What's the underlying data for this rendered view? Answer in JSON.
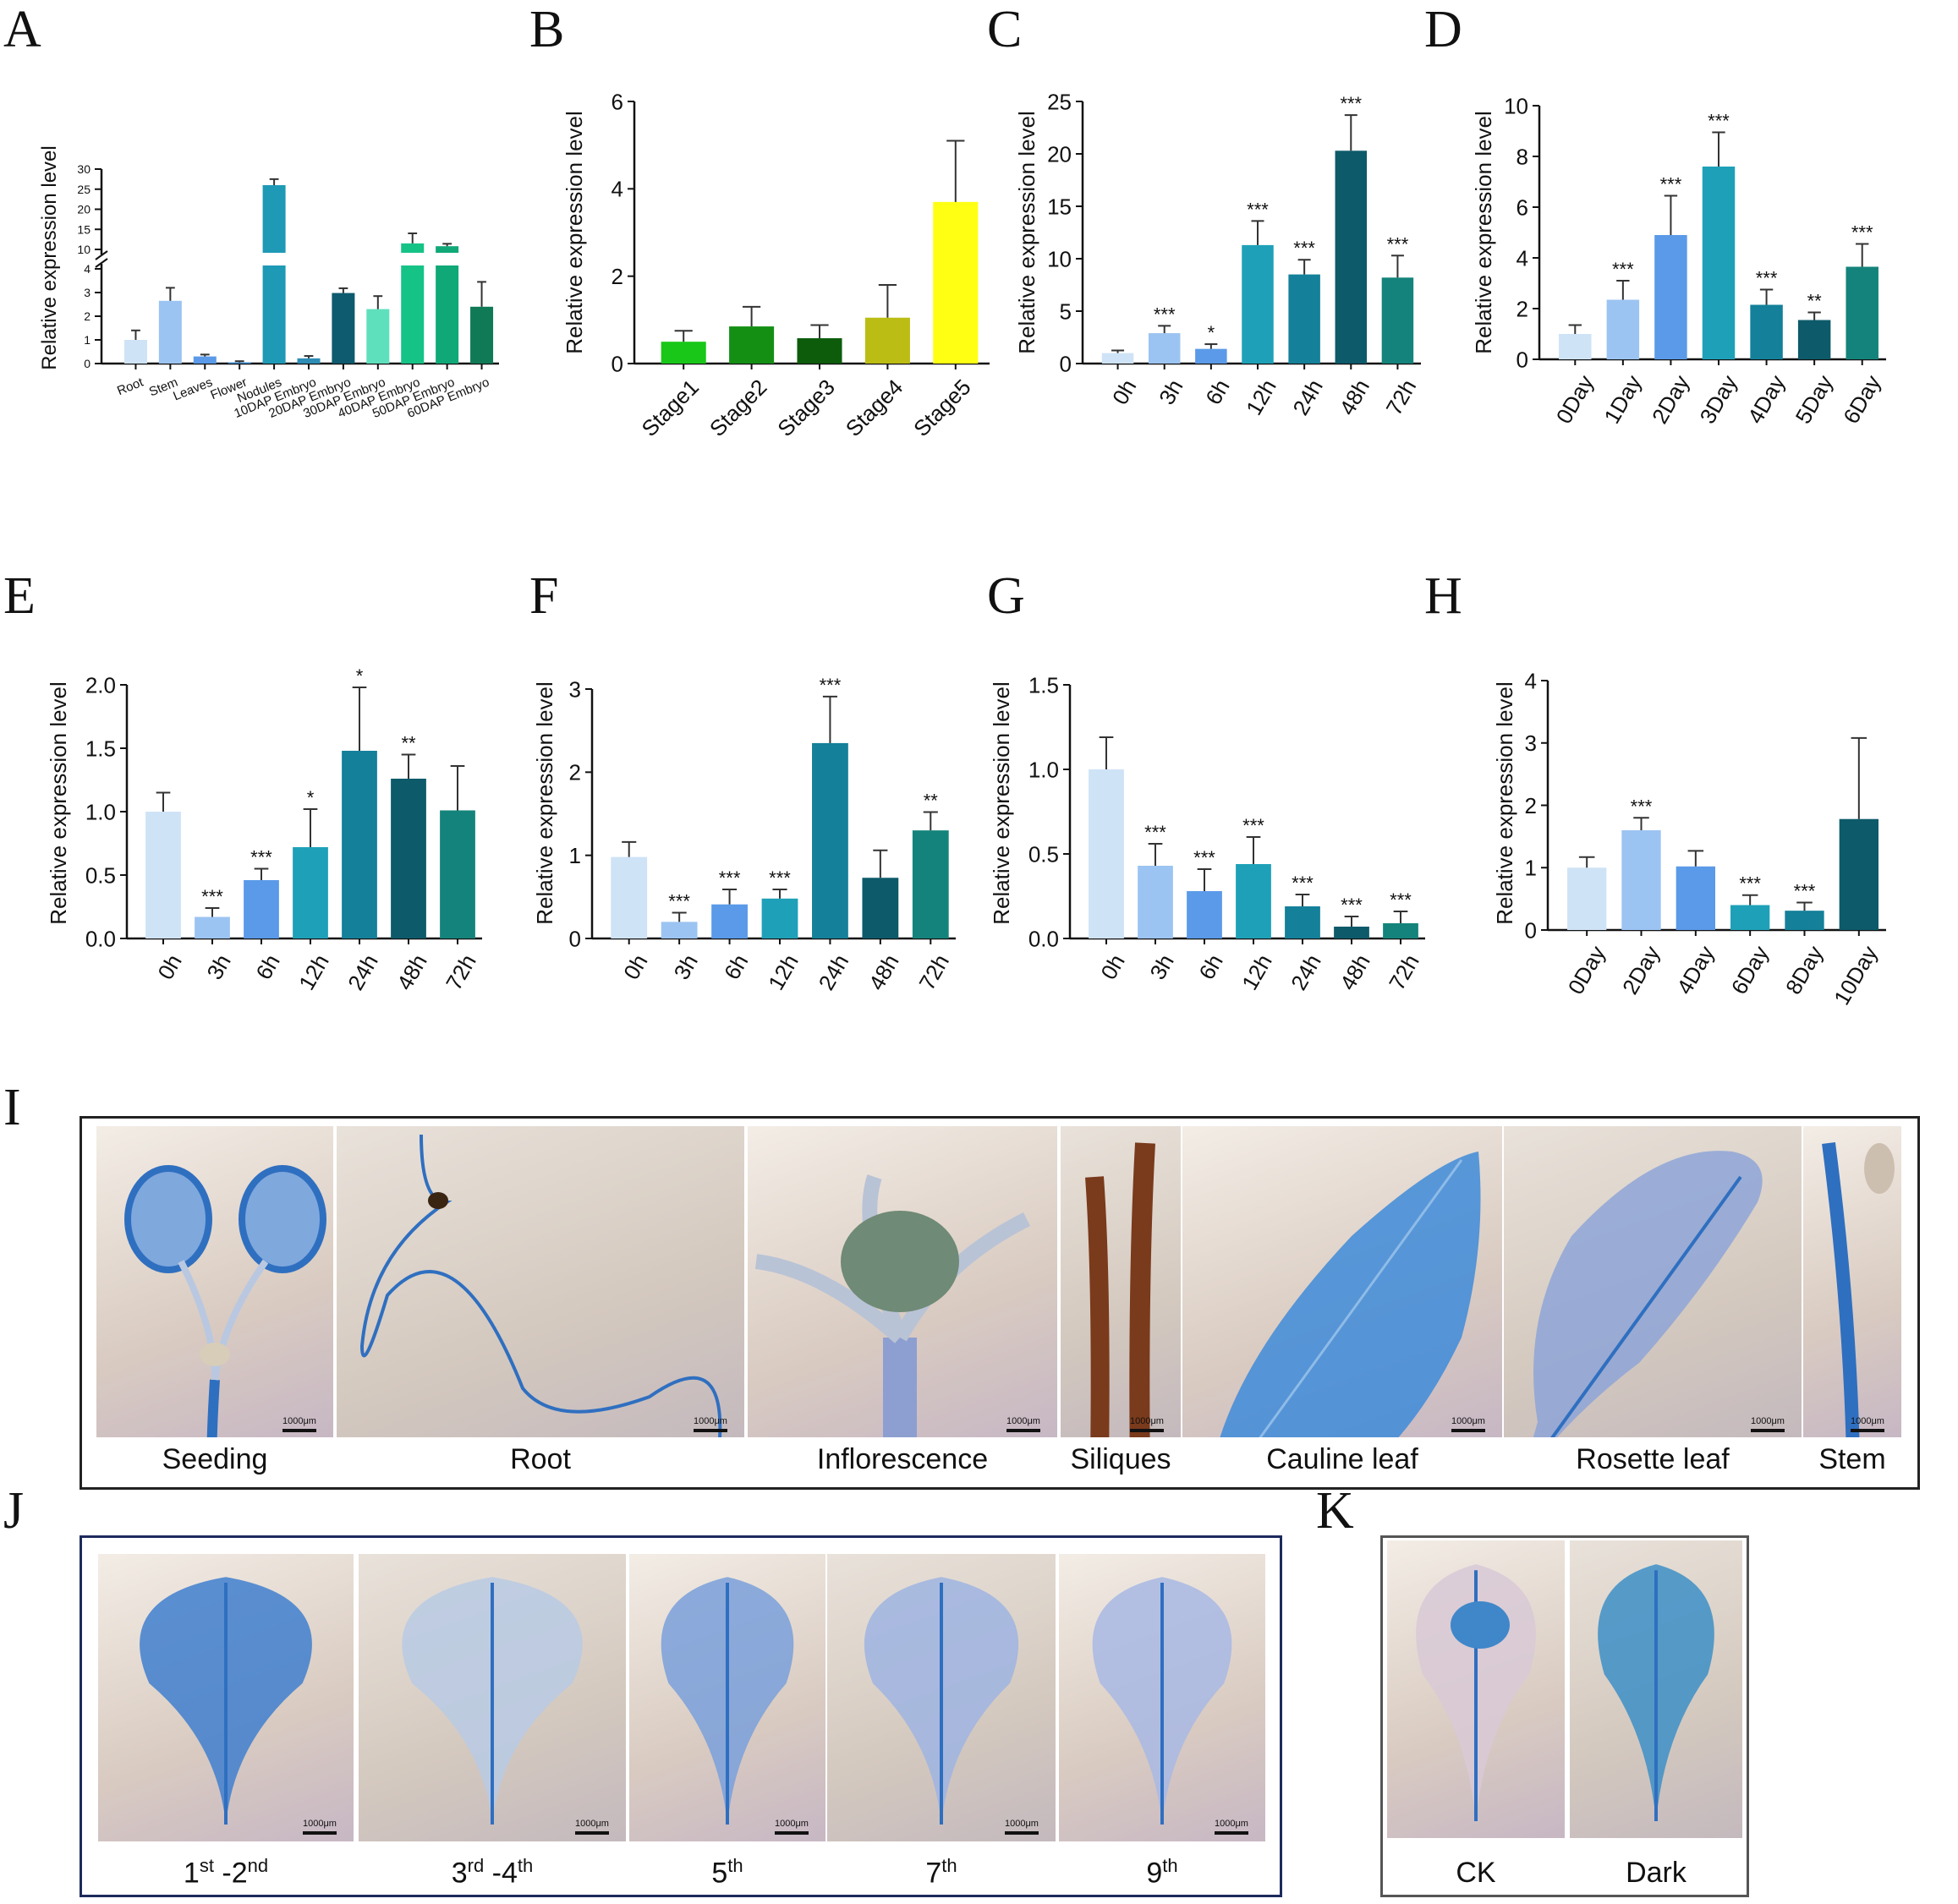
{
  "panels": {
    "A": "A",
    "B": "B",
    "C": "C",
    "D": "D",
    "E": "E",
    "F": "F",
    "G": "G",
    "H": "H",
    "I": "I",
    "J": "J",
    "K": "K"
  },
  "chart_data": [
    {
      "id": "A",
      "type": "bar",
      "ylabel": "Relative expression level",
      "break": true,
      "lower_ticks": [
        "0",
        "1",
        "2",
        "3",
        "4"
      ],
      "upper_ticks": [
        "10",
        "15",
        "20",
        "25",
        "30"
      ],
      "categories": [
        "Root",
        "Stem",
        "Leaves",
        "Flower",
        "Nodules",
        "10DAP Embryo",
        "20DAP Embryo",
        "30DAP Embryo",
        "40DAP Embryo",
        "50DAP Embryo",
        "60DAP Embryo"
      ],
      "values": [
        1.0,
        2.65,
        0.3,
        0.05,
        26.0,
        0.22,
        2.98,
        2.3,
        11.5,
        10.8,
        2.4
      ],
      "errors": [
        0.4,
        0.55,
        0.08,
        0.05,
        1.5,
        0.1,
        0.2,
        0.55,
        2.5,
        0.6,
        1.05
      ],
      "colors": [
        "#cfe3f6",
        "#9cc4f2",
        "#5a9ae8",
        "#3d8fd8",
        "#1e99b6",
        "#2d8db5",
        "#0e5a6e",
        "#5fe0bc",
        "#16c387",
        "#11a878",
        "#0f7a55"
      ]
    },
    {
      "id": "B",
      "type": "bar",
      "ylabel": "Relative expression level",
      "ylim": [
        0,
        6
      ],
      "ticks": [
        "0",
        "2",
        "4",
        "6"
      ],
      "categories": [
        "Stage1",
        "Stage2",
        "Stage3",
        "Stage4",
        "Stage5"
      ],
      "values": [
        0.5,
        0.85,
        0.58,
        1.05,
        3.7
      ],
      "errors": [
        0.25,
        0.45,
        0.3,
        0.75,
        1.4
      ],
      "colors": [
        "#18c718",
        "#148f14",
        "#0c5c0c",
        "#bcbd14",
        "#ffff14"
      ]
    },
    {
      "id": "C",
      "type": "bar",
      "ylabel": "Relative expression level",
      "ylim": [
        0,
        25
      ],
      "ticks": [
        "0",
        "5",
        "10",
        "15",
        "20",
        "25"
      ],
      "categories": [
        "0h",
        "3h",
        "6h",
        "12h",
        "24h",
        "48h",
        "72h"
      ],
      "values": [
        1.0,
        2.9,
        1.4,
        11.3,
        8.5,
        20.3,
        8.2
      ],
      "errors": [
        0.25,
        0.7,
        0.45,
        2.3,
        1.4,
        3.4,
        2.1
      ],
      "sig": [
        "",
        "***",
        "*",
        "***",
        "***",
        "***",
        "***"
      ],
      "colors": [
        "#cfe3f6",
        "#9cc4f2",
        "#5a9ae8",
        "#1ea1b8",
        "#14809a",
        "#0d5a6a",
        "#14837b"
      ]
    },
    {
      "id": "D",
      "type": "bar",
      "ylabel": "Relative expression level",
      "ylim": [
        0,
        10
      ],
      "ticks": [
        "0",
        "2",
        "4",
        "6",
        "8",
        "10"
      ],
      "categories": [
        "0Day",
        "1Day",
        "2Day",
        "3Day",
        "4Day",
        "5Day",
        "6Day"
      ],
      "values": [
        1.0,
        2.35,
        4.9,
        7.6,
        2.15,
        1.55,
        3.65
      ],
      "errors": [
        0.35,
        0.75,
        1.55,
        1.35,
        0.6,
        0.3,
        0.9
      ],
      "sig": [
        "",
        "***",
        "***",
        "***",
        "***",
        "**",
        "***"
      ],
      "colors": [
        "#cfe3f6",
        "#9cc4f2",
        "#5a9ae8",
        "#1ea1b8",
        "#14809a",
        "#0d5a6a",
        "#14837b"
      ]
    },
    {
      "id": "E",
      "type": "bar",
      "ylabel": "Relative expression level",
      "ylim": [
        0,
        2.0
      ],
      "ticks": [
        "0.0",
        "0.5",
        "1.0",
        "1.5",
        "2.0"
      ],
      "categories": [
        "0h",
        "3h",
        "6h",
        "12h",
        "24h",
        "48h",
        "72h"
      ],
      "values": [
        1.0,
        0.17,
        0.46,
        0.72,
        1.48,
        1.26,
        1.01
      ],
      "errors": [
        0.15,
        0.07,
        0.09,
        0.3,
        0.5,
        0.19,
        0.35
      ],
      "sig": [
        "",
        "***",
        "***",
        "*",
        "*",
        "**",
        ""
      ],
      "colors": [
        "#cfe3f6",
        "#9cc4f2",
        "#5a9ae8",
        "#1ea1b8",
        "#14809a",
        "#0d5a6a",
        "#14837b"
      ]
    },
    {
      "id": "F",
      "type": "bar",
      "ylabel": "Relative expression level",
      "ylim": [
        0,
        3
      ],
      "ticks": [
        "0",
        "1",
        "2",
        "3"
      ],
      "categories": [
        "0h",
        "3h",
        "6h",
        "12h",
        "24h",
        "48h",
        "72h"
      ],
      "values": [
        0.98,
        0.2,
        0.41,
        0.48,
        2.35,
        0.73,
        1.3
      ],
      "errors": [
        0.18,
        0.11,
        0.18,
        0.11,
        0.56,
        0.33,
        0.22
      ],
      "sig": [
        "",
        "***",
        "***",
        "***",
        "***",
        "",
        "**"
      ],
      "colors": [
        "#cfe3f6",
        "#9cc4f2",
        "#5a9ae8",
        "#1ea1b8",
        "#14809a",
        "#0d5a6a",
        "#14837b"
      ]
    },
    {
      "id": "G",
      "type": "bar",
      "ylabel": "Relative expression level",
      "ylim": [
        0,
        1.5
      ],
      "ticks": [
        "0.0",
        "0.5",
        "1.0",
        "1.5"
      ],
      "categories": [
        "0h",
        "3h",
        "6h",
        "12h",
        "24h",
        "48h",
        "72h"
      ],
      "values": [
        1.0,
        0.43,
        0.28,
        0.44,
        0.19,
        0.07,
        0.09
      ],
      "errors": [
        0.19,
        0.13,
        0.13,
        0.16,
        0.07,
        0.06,
        0.07
      ],
      "sig": [
        "",
        "***",
        "***",
        "***",
        "***",
        "***",
        "***"
      ],
      "colors": [
        "#cfe3f6",
        "#9cc4f2",
        "#5a9ae8",
        "#1ea1b8",
        "#14809a",
        "#0d5a6a",
        "#14837b"
      ]
    },
    {
      "id": "H",
      "type": "bar",
      "ylabel": "Relative expression level",
      "ylim": [
        0,
        4
      ],
      "ticks": [
        "0",
        "1",
        "2",
        "3",
        "4"
      ],
      "categories": [
        "0Day",
        "2Day",
        "4Day",
        "6Day",
        "8Day",
        "10Day"
      ],
      "values": [
        1.0,
        1.6,
        1.02,
        0.4,
        0.31,
        1.78
      ],
      "errors": [
        0.17,
        0.2,
        0.25,
        0.16,
        0.13,
        1.3
      ],
      "sig": [
        "",
        "***",
        "",
        "***",
        "***",
        ""
      ],
      "colors": [
        "#cfe3f6",
        "#9cc4f2",
        "#5a9ae8",
        "#1ea1b8",
        "#14809a",
        "#0d5a6a"
      ]
    }
  ],
  "photos_I": {
    "captions": [
      "Seeding",
      "Root",
      "Inflorescence",
      "Siliques",
      "Cauline leaf",
      "Rosette leaf",
      "Stem"
    ],
    "scale": "1000μm"
  },
  "photos_J": {
    "captions": [
      [
        "1",
        "st",
        " -2",
        "nd"
      ],
      [
        "3",
        "rd",
        " -4",
        "th"
      ],
      [
        "5",
        "th",
        "",
        ""
      ],
      [
        "7",
        "th",
        "",
        ""
      ],
      [
        "9",
        "th",
        "",
        ""
      ]
    ],
    "scale": "1000μm"
  },
  "photos_K": {
    "captions": [
      "CK",
      "Dark"
    ]
  }
}
